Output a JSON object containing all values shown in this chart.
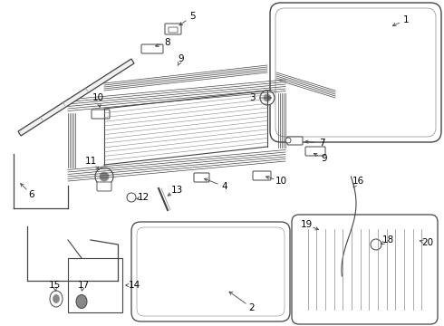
{
  "background_color": "#ffffff",
  "line_color": "#444444",
  "light_line_color": "#888888",
  "label_color": "#000000",
  "fig_width": 4.9,
  "fig_height": 3.6,
  "dpi": 100
}
